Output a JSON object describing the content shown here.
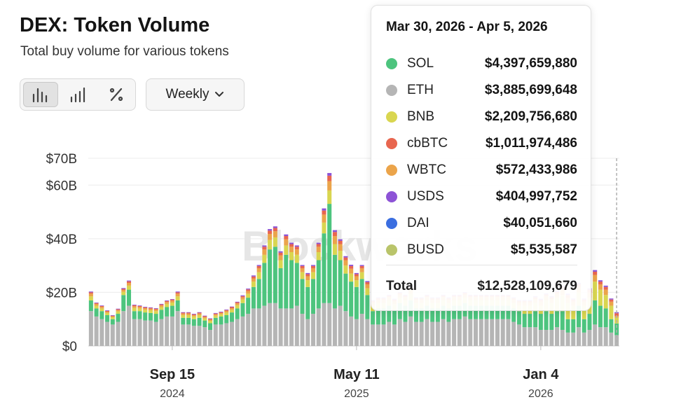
{
  "header": {
    "title": "DEX: Token Volume",
    "subtitle": "Total buy volume for various tokens"
  },
  "controls": {
    "chart_types": [
      "stacked-bar-icon",
      "bar-icon",
      "percent-icon"
    ],
    "period": "Weekly"
  },
  "watermark": "Blockworks",
  "tooltip": {
    "date_range": "Mar 30, 2026 - Apr 5, 2026",
    "rows": [
      {
        "name": "SOL",
        "value": "$4,397,659,880",
        "color": "#4dc47e"
      },
      {
        "name": "ETH",
        "value": "$3,885,699,648",
        "color": "#b5b5b5"
      },
      {
        "name": "BNB",
        "value": "$2,209,756,680",
        "color": "#d9d650"
      },
      {
        "name": "cbBTC",
        "value": "$1,011,974,486",
        "color": "#e8664f"
      },
      {
        "name": "WBTC",
        "value": "$572,433,986",
        "color": "#eba44a"
      },
      {
        "name": "USDS",
        "value": "$404,997,752",
        "color": "#8d53d6"
      },
      {
        "name": "DAI",
        "value": "$40,051,660",
        "color": "#3b6ee0"
      },
      {
        "name": "BUSD",
        "value": "$5,535,587",
        "color": "#b9c46a"
      }
    ],
    "total_label": "Total",
    "total_value": "$12,528,109,679"
  },
  "chart_data": {
    "type": "bar",
    "stacked": true,
    "title": "DEX: Token Volume",
    "subtitle": "Total buy volume for various tokens",
    "y_axis": {
      "min": 0,
      "max": 70,
      "unit": "B USD",
      "ticks": [
        {
          "value": 0,
          "label": "$0"
        },
        {
          "value": 20,
          "label": "$20B"
        },
        {
          "value": 40,
          "label": "$40B"
        },
        {
          "value": 60,
          "label": "$60B"
        },
        {
          "value": 70,
          "label": "$70B"
        }
      ]
    },
    "x_axis": {
      "ticks": [
        {
          "label": "Sep 15",
          "year": "2024",
          "index": 15
        },
        {
          "label": "May 11",
          "year": "2025",
          "index": 49
        },
        {
          "label": "Jan 4",
          "year": "2026",
          "index": 83
        }
      ]
    },
    "series_names": [
      "ETH",
      "SOL",
      "BNB",
      "WBTC",
      "cbBTC",
      "USDS"
    ],
    "series_colors": [
      "#b5b5b5",
      "#4dc47e",
      "#d9d650",
      "#eba44a",
      "#e8664f",
      "#8d53d6"
    ],
    "weeks": [
      [
        13,
        4,
        1.5,
        1,
        0.5,
        0.3
      ],
      [
        11,
        3,
        1,
        0.7,
        0.3,
        0.2
      ],
      [
        10,
        3,
        1,
        0.6,
        0.3,
        0.2
      ],
      [
        9,
        2.5,
        0.8,
        0.5,
        0.3,
        0.2
      ],
      [
        8,
        2,
        0.7,
        0.4,
        0.2,
        0.2
      ],
      [
        9,
        3,
        0.9,
        0.5,
        0.3,
        0.2
      ],
      [
        13,
        6,
        1.2,
        0.7,
        0.4,
        0.3
      ],
      [
        15,
        6,
        1.5,
        1,
        0.6,
        0.3
      ],
      [
        10,
        3,
        1.2,
        0.6,
        0.4,
        0.2
      ],
      [
        10,
        3,
        1,
        0.6,
        0.3,
        0.2
      ],
      [
        9.5,
        3,
        1,
        0.6,
        0.3,
        0.2
      ],
      [
        9.5,
        2.8,
        1,
        0.6,
        0.3,
        0.2
      ],
      [
        9,
        3,
        1,
        0.6,
        0.3,
        0.2
      ],
      [
        10,
        3.5,
        1,
        0.6,
        0.4,
        0.2
      ],
      [
        11,
        3.5,
        1.2,
        0.7,
        0.4,
        0.2
      ],
      [
        11,
        4,
        1.2,
        0.7,
        0.4,
        0.2
      ],
      [
        13,
        4,
        1.5,
        1,
        0.5,
        0.3
      ],
      [
        8,
        2.5,
        1,
        0.6,
        0.3,
        0.2
      ],
      [
        8,
        2.5,
        1,
        0.6,
        0.3,
        0.2
      ],
      [
        7.5,
        2.5,
        1,
        0.5,
        0.3,
        0.2
      ],
      [
        7.5,
        3,
        1,
        0.6,
        0.3,
        0.2
      ],
      [
        7,
        2.5,
        0.8,
        0.5,
        0.3,
        0.2
      ],
      [
        6,
        2.5,
        0.8,
        0.5,
        0.3,
        0.2
      ],
      [
        8,
        2.5,
        0.8,
        0.5,
        0.3,
        0.2
      ],
      [
        8,
        3,
        0.8,
        0.5,
        0.3,
        0.2
      ],
      [
        8.5,
        3,
        1,
        0.6,
        0.3,
        0.2
      ],
      [
        9,
        3.5,
        1,
        0.6,
        0.4,
        0.2
      ],
      [
        10,
        4,
        1.2,
        0.7,
        0.4,
        0.2
      ],
      [
        11,
        5,
        1.3,
        0.8,
        0.5,
        0.3
      ],
      [
        12,
        6,
        1.5,
        1,
        0.6,
        0.3
      ],
      [
        14,
        8,
        2,
        1.2,
        0.7,
        0.4
      ],
      [
        14,
        11,
        2.5,
        1.5,
        0.8,
        0.4
      ],
      [
        15,
        16,
        3,
        2,
        1,
        0.5
      ],
      [
        16,
        20,
        3.5,
        2.3,
        1.2,
        0.6
      ],
      [
        16,
        21,
        3.5,
        2.3,
        1.2,
        0.6
      ],
      [
        14,
        15,
        3,
        1.8,
        1,
        0.5
      ],
      [
        14,
        20,
        3.5,
        2.3,
        1.2,
        0.6
      ],
      [
        14,
        18,
        3,
        2,
        1,
        0.5
      ],
      [
        15,
        16,
        3,
        2,
        1,
        0.5
      ],
      [
        12,
        13,
        2.5,
        1.5,
        0.8,
        0.4
      ],
      [
        10,
        12,
        2.5,
        1.5,
        0.8,
        0.4
      ],
      [
        12,
        13,
        2.5,
        1.5,
        0.8,
        0.4
      ],
      [
        14,
        18,
        3,
        2,
        1,
        0.5
      ],
      [
        16,
        26,
        4,
        3,
        1.5,
        0.8
      ],
      [
        16,
        37,
        5,
        3.5,
        2,
        1
      ],
      [
        14,
        20,
        4,
        3,
        1.5,
        0.7
      ],
      [
        15,
        17,
        3.5,
        2.5,
        1.2,
        0.6
      ],
      [
        13,
        14,
        3,
        2,
        1,
        0.5
      ],
      [
        11,
        13,
        3,
        1.8,
        1,
        0.5
      ],
      [
        10,
        12,
        2.5,
        1.5,
        0.8,
        0.4
      ],
      [
        12,
        13,
        2.5,
        1.5,
        0.8,
        0.4
      ],
      [
        10,
        9,
        2.5,
        1.5,
        0.8,
        0.4
      ],
      [
        8,
        5,
        2,
        1.2,
        0.6,
        0.3
      ],
      [
        8,
        6,
        2,
        1.2,
        0.6,
        0.3
      ],
      [
        8,
        6,
        2,
        1.2,
        0.6,
        0.3
      ],
      [
        9,
        6,
        2,
        1.2,
        0.6,
        0.3
      ],
      [
        8,
        5.5,
        2,
        1.2,
        0.6,
        0.3
      ],
      [
        10,
        6,
        2,
        1.2,
        0.6,
        0.3
      ],
      [
        9,
        6,
        2,
        1.2,
        0.6,
        0.3
      ],
      [
        11,
        6,
        2.5,
        1.5,
        0.8,
        0.4
      ],
      [
        9,
        5,
        2,
        1.2,
        0.6,
        0.3
      ],
      [
        9,
        5,
        2,
        1.2,
        0.6,
        0.3
      ],
      [
        10,
        5,
        2,
        1.2,
        0.6,
        0.3
      ],
      [
        9,
        5,
        2,
        1.2,
        0.6,
        0.3
      ],
      [
        9,
        5,
        2,
        1.2,
        0.6,
        0.3
      ],
      [
        10,
        5,
        2,
        1.2,
        0.6,
        0.3
      ],
      [
        9,
        5,
        2,
        1.2,
        0.6,
        0.3
      ],
      [
        10,
        5,
        2,
        1.2,
        0.6,
        0.3
      ],
      [
        10,
        5,
        2,
        1.2,
        0.6,
        0.3
      ],
      [
        11,
        5,
        2,
        1.2,
        0.6,
        0.3
      ],
      [
        10,
        5,
        2,
        1.2,
        0.6,
        0.3
      ],
      [
        10,
        5,
        2,
        1.2,
        0.6,
        0.3
      ],
      [
        10,
        5,
        2,
        1.2,
        0.6,
        0.3
      ],
      [
        10,
        5,
        2,
        1.2,
        0.6,
        0.3
      ],
      [
        10,
        5,
        2,
        1.2,
        0.6,
        0.3
      ],
      [
        10,
        5,
        2,
        1.2,
        0.6,
        0.3
      ],
      [
        10,
        5,
        2,
        1.2,
        0.6,
        0.3
      ],
      [
        10,
        5,
        2,
        1.2,
        0.6,
        0.3
      ],
      [
        9,
        5,
        2,
        1.2,
        0.6,
        0.3
      ],
      [
        8,
        5,
        2,
        1.2,
        0.6,
        0.3
      ],
      [
        7,
        5,
        3,
        1.2,
        0.6,
        0.3
      ],
      [
        7,
        5,
        3,
        1.2,
        0.6,
        0.3
      ],
      [
        7,
        6,
        3,
        1.5,
        0.7,
        0.4
      ],
      [
        6,
        6,
        3,
        1.5,
        0.7,
        0.4
      ],
      [
        6,
        7,
        4,
        1.5,
        0.7,
        0.4
      ],
      [
        6,
        6,
        4,
        1.5,
        0.7,
        0.4
      ],
      [
        7,
        6,
        5,
        1.5,
        0.7,
        0.4
      ],
      [
        6,
        7,
        6,
        2,
        1,
        0.5
      ],
      [
        5,
        5,
        6,
        2,
        1,
        0.5
      ],
      [
        5,
        5,
        5,
        1.5,
        0.8,
        0.4
      ],
      [
        7,
        8,
        5,
        2,
        1,
        0.5
      ],
      [
        5,
        5,
        5,
        1.5,
        0.8,
        0.4
      ],
      [
        6,
        6,
        6,
        2,
        1,
        0.5
      ],
      [
        8,
        9,
        7,
        2.5,
        1.2,
        0.6
      ],
      [
        7,
        8,
        6,
        2,
        1,
        0.5
      ],
      [
        7,
        7,
        5,
        2,
        1,
        0.5
      ],
      [
        5,
        5,
        5,
        1.5,
        0.8,
        0.4
      ],
      [
        4,
        4.4,
        2.2,
        0.6,
        1,
        0.4
      ]
    ]
  }
}
